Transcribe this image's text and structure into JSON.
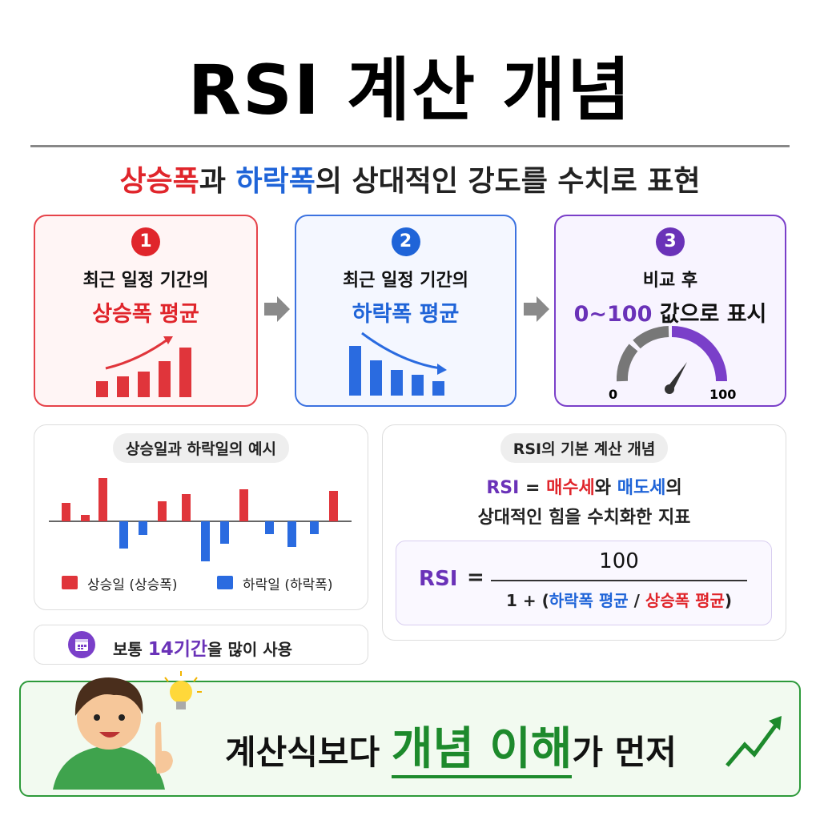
{
  "title": "RSI 계산 개념",
  "subtitle": {
    "up": "상승폭",
    "join": "과 ",
    "down": "하락폭",
    "rest": "의 상대적인 강도를 수치로 표현"
  },
  "steps": [
    {
      "number": 1,
      "line1": "최근 일정 기간의",
      "line2": "상승폭 평균"
    },
    {
      "number": 2,
      "line1": "최근 일정 기간의",
      "line2": "하락폭 평균"
    },
    {
      "number": 3,
      "line1": "비교 후",
      "range": "0~100",
      "line2": " 값으로 표시",
      "gauge_min": 0,
      "gauge_max": 100
    }
  ],
  "example": {
    "title": "상승일과 하락일의 예시",
    "legend_up": "상승일 (상승폭)",
    "legend_down": "하락일 (하락폭)"
  },
  "tip": {
    "before": "보통 ",
    "highlight": "14기간",
    "after": "을 많이 사용"
  },
  "concept": {
    "title": "RSI의 기본 계산 개념",
    "def_rsi": "RSI",
    "def_eq": " = ",
    "def_buy": "매수세",
    "def_and": "와 ",
    "def_sell": "매도세",
    "def_of": "의",
    "def_line2": "상대적인 힘을 수치화한 지표",
    "formula": {
      "lhs": "RSI",
      "eq": "=",
      "numerator": 100,
      "den_start": "1 + (",
      "den_down": "하락폭 평균",
      "den_slash": " / ",
      "den_up": "상승폭 평균",
      "den_end": ")"
    }
  },
  "banner": {
    "before": "계산식보다 ",
    "highlight": "개념 이해",
    "after": "가 먼저"
  }
}
